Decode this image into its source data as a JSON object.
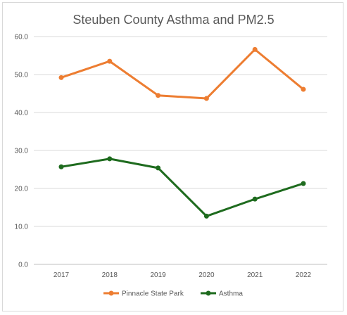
{
  "chart_data": {
    "type": "line",
    "title": "Steuben County Asthma and PM2.5",
    "xlabel": "",
    "ylabel": "",
    "x": [
      "2017",
      "2018",
      "2019",
      "2020",
      "2021",
      "2022"
    ],
    "ylim": [
      0,
      60
    ],
    "yticks": [
      "0.0",
      "10.0",
      "20.0",
      "30.0",
      "40.0",
      "50.0",
      "60.0"
    ],
    "grid": true,
    "legend_position": "bottom",
    "series": [
      {
        "name": "Pinnacle State Park",
        "color": "#ED7D31",
        "values": [
          49.2,
          53.5,
          44.5,
          43.7,
          56.6,
          46.1
        ]
      },
      {
        "name": "Asthma",
        "color": "#1E6B1E",
        "values": [
          25.7,
          27.8,
          25.4,
          12.7,
          17.2,
          21.3
        ]
      }
    ]
  }
}
